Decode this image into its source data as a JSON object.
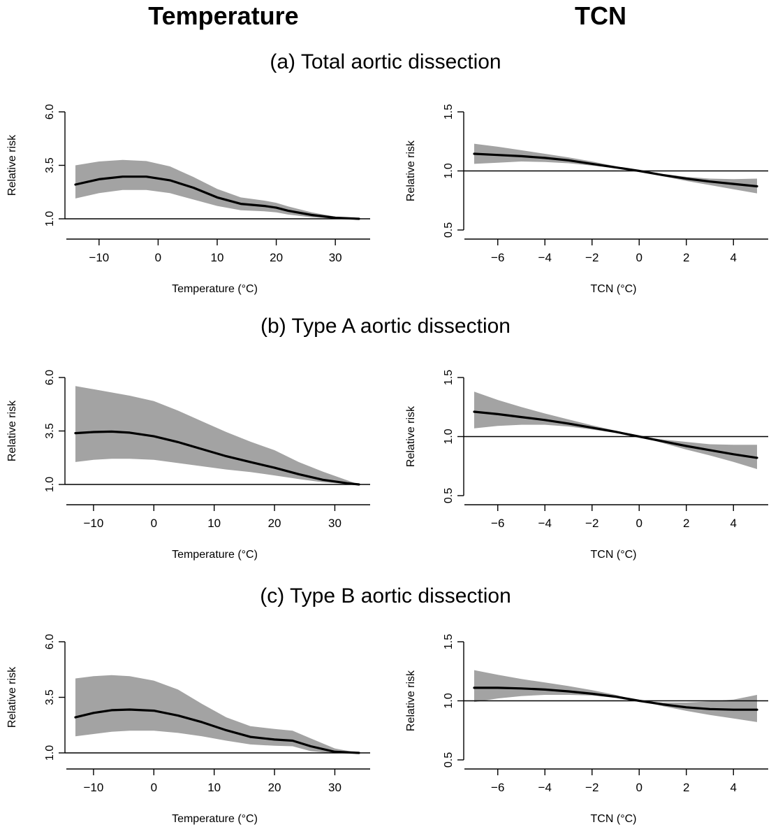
{
  "column_titles": {
    "left": "Temperature",
    "right": "TCN"
  },
  "row_titles": {
    "a": "(a) Total aortic dissection",
    "b": "(b) Type A aortic dissection",
    "c": "(c) Type B aortic dissection"
  },
  "colors": {
    "band": "#a3a3a3",
    "line": "#000000"
  },
  "chart_data": [
    {
      "id": "a-temperature",
      "type": "line",
      "title": "(a) Total aortic dissection",
      "xlabel": "Temperature (°C)",
      "ylabel": "Relative risk",
      "xlim": [
        -14,
        34
      ],
      "ylim": [
        1.0,
        6.0
      ],
      "xticks": [
        -10,
        0,
        10,
        20,
        30
      ],
      "xtick_labels": [
        "−10",
        "0",
        "10",
        "20",
        "30"
      ],
      "yticks": [
        1.0,
        3.5,
        6.0
      ],
      "ytick_labels": [
        "1.0",
        "3.5",
        "6.0"
      ],
      "reference_line": 1.0,
      "series": [
        {
          "x": [
            -14,
            -10,
            -6,
            -2,
            2,
            6,
            10,
            14,
            18,
            20,
            22,
            26,
            30,
            34
          ],
          "y": [
            2.6,
            2.85,
            2.97,
            2.97,
            2.8,
            2.45,
            2.0,
            1.7,
            1.6,
            1.52,
            1.38,
            1.18,
            1.05,
            1.0
          ],
          "lower": [
            1.95,
            2.2,
            2.35,
            2.35,
            2.2,
            1.9,
            1.6,
            1.4,
            1.35,
            1.3,
            1.2,
            1.07,
            1.01,
            1.0
          ],
          "upper": [
            3.5,
            3.68,
            3.75,
            3.7,
            3.45,
            2.95,
            2.4,
            2.0,
            1.85,
            1.75,
            1.58,
            1.3,
            1.1,
            1.0
          ]
        }
      ]
    },
    {
      "id": "a-tcn",
      "type": "line",
      "title": "(a) Total aortic dissection",
      "xlabel": "TCN (°C)",
      "ylabel": "Relative risk",
      "xlim": [
        -7,
        5
      ],
      "ylim": [
        0.5,
        1.5
      ],
      "xticks": [
        -6,
        -4,
        -2,
        0,
        2,
        4
      ],
      "xtick_labels": [
        "−6",
        "−4",
        "−2",
        "0",
        "2",
        "4"
      ],
      "yticks": [
        0.5,
        1.0,
        1.5
      ],
      "ytick_labels": [
        "0.5",
        "1.0",
        "1.5"
      ],
      "reference_line": 1.0,
      "series": [
        {
          "x": [
            -7,
            -6,
            -5,
            -4,
            -3,
            -2,
            -1,
            0,
            1,
            2,
            3,
            4,
            5
          ],
          "y": [
            1.145,
            1.135,
            1.125,
            1.11,
            1.09,
            1.06,
            1.03,
            1.0,
            0.965,
            0.935,
            0.91,
            0.89,
            0.87
          ],
          "lower": [
            1.06,
            1.07,
            1.08,
            1.075,
            1.065,
            1.045,
            1.022,
            1.0,
            0.955,
            0.915,
            0.88,
            0.845,
            0.81
          ],
          "upper": [
            1.23,
            1.205,
            1.175,
            1.145,
            1.115,
            1.08,
            1.04,
            1.0,
            0.975,
            0.95,
            0.935,
            0.93,
            0.935
          ]
        }
      ]
    },
    {
      "id": "b-temperature",
      "type": "line",
      "title": "(b) Type A aortic dissection",
      "xlabel": "Temperature (°C)",
      "ylabel": "Relative risk",
      "xlim": [
        -13,
        34
      ],
      "ylim": [
        1.0,
        6.0
      ],
      "xticks": [
        -10,
        0,
        10,
        20,
        30
      ],
      "xtick_labels": [
        "−10",
        "0",
        "10",
        "20",
        "30"
      ],
      "yticks": [
        1.0,
        3.5,
        6.0
      ],
      "ytick_labels": [
        "1.0",
        "3.5",
        "6.0"
      ],
      "reference_line": 1.0,
      "series": [
        {
          "x": [
            -13,
            -10,
            -7,
            -4,
            0,
            4,
            8,
            12,
            16,
            20,
            24,
            28,
            32,
            34
          ],
          "y": [
            3.4,
            3.45,
            3.47,
            3.42,
            3.25,
            2.98,
            2.65,
            2.32,
            2.05,
            1.78,
            1.48,
            1.22,
            1.06,
            1.0
          ],
          "lower": [
            2.05,
            2.15,
            2.2,
            2.2,
            2.15,
            2.0,
            1.85,
            1.7,
            1.58,
            1.42,
            1.25,
            1.1,
            1.02,
            1.0
          ],
          "upper": [
            5.6,
            5.45,
            5.3,
            5.15,
            4.9,
            4.45,
            3.95,
            3.45,
            3.0,
            2.6,
            2.05,
            1.6,
            1.2,
            1.0
          ]
        }
      ]
    },
    {
      "id": "b-tcn",
      "type": "line",
      "title": "(b) Type A aortic dissection",
      "xlabel": "TCN (°C)",
      "ylabel": "Relative risk",
      "xlim": [
        -7,
        5
      ],
      "ylim": [
        0.5,
        1.5
      ],
      "xticks": [
        -6,
        -4,
        -2,
        0,
        2,
        4
      ],
      "xtick_labels": [
        "−6",
        "−4",
        "−2",
        "0",
        "2",
        "4"
      ],
      "yticks": [
        0.5,
        1.0,
        1.5
      ],
      "ytick_labels": [
        "0.5",
        "1.0",
        "1.5"
      ],
      "reference_line": 1.0,
      "series": [
        {
          "x": [
            -7,
            -6,
            -5,
            -4,
            -3,
            -2,
            -1,
            0,
            1,
            2,
            3,
            4,
            5
          ],
          "y": [
            1.21,
            1.19,
            1.165,
            1.14,
            1.11,
            1.075,
            1.04,
            1.0,
            0.96,
            0.92,
            0.885,
            0.85,
            0.82
          ],
          "lower": [
            1.07,
            1.09,
            1.1,
            1.1,
            1.085,
            1.06,
            1.03,
            1.0,
            0.945,
            0.89,
            0.84,
            0.785,
            0.725
          ],
          "upper": [
            1.38,
            1.31,
            1.25,
            1.195,
            1.145,
            1.095,
            1.05,
            1.0,
            0.975,
            0.955,
            0.935,
            0.93,
            0.93
          ]
        }
      ]
    },
    {
      "id": "c-temperature",
      "type": "line",
      "title": "(c) Type B aortic dissection",
      "xlabel": "Temperature (°C)",
      "ylabel": "Relative risk",
      "xlim": [
        -13,
        34
      ],
      "ylim": [
        1.0,
        6.0
      ],
      "xticks": [
        -10,
        0,
        10,
        20,
        30
      ],
      "xtick_labels": [
        "−10",
        "0",
        "10",
        "20",
        "30"
      ],
      "yticks": [
        1.0,
        3.5,
        6.0
      ],
      "ytick_labels": [
        "1.0",
        "3.5",
        "6.0"
      ],
      "reference_line": 1.0,
      "series": [
        {
          "x": [
            -13,
            -10,
            -7,
            -4,
            0,
            4,
            8,
            12,
            16,
            20,
            23,
            26,
            30,
            34
          ],
          "y": [
            2.6,
            2.8,
            2.92,
            2.95,
            2.9,
            2.68,
            2.38,
            2.02,
            1.72,
            1.6,
            1.55,
            1.3,
            1.05,
            1.0
          ],
          "lower": [
            1.75,
            1.85,
            1.95,
            2.0,
            2.0,
            1.9,
            1.75,
            1.55,
            1.38,
            1.32,
            1.3,
            1.08,
            0.98,
            1.0
          ],
          "upper": [
            4.35,
            4.45,
            4.5,
            4.45,
            4.25,
            3.85,
            3.2,
            2.6,
            2.2,
            2.08,
            2.0,
            1.65,
            1.2,
            1.0
          ]
        }
      ]
    },
    {
      "id": "c-tcn",
      "type": "line",
      "title": "(c) Type B aortic dissection",
      "xlabel": "TCN (°C)",
      "ylabel": "Relative risk",
      "xlim": [
        -7,
        5
      ],
      "ylim": [
        0.5,
        1.5
      ],
      "xticks": [
        -6,
        -4,
        -2,
        0,
        2,
        4
      ],
      "xtick_labels": [
        "−6",
        "−4",
        "−2",
        "0",
        "2",
        "4"
      ],
      "yticks": [
        0.5,
        1.0,
        1.5
      ],
      "ytick_labels": [
        "0.5",
        "1.0",
        "1.5"
      ],
      "reference_line": 1.0,
      "series": [
        {
          "x": [
            -7,
            -6,
            -5,
            -4,
            -3,
            -2,
            -1,
            0,
            1,
            2,
            3,
            4,
            5
          ],
          "y": [
            1.11,
            1.11,
            1.105,
            1.095,
            1.08,
            1.06,
            1.035,
            1.0,
            0.97,
            0.945,
            0.93,
            0.925,
            0.925
          ],
          "lower": [
            0.99,
            1.02,
            1.04,
            1.05,
            1.05,
            1.045,
            1.025,
            1.0,
            0.955,
            0.915,
            0.88,
            0.85,
            0.82
          ],
          "upper": [
            1.26,
            1.22,
            1.185,
            1.155,
            1.125,
            1.09,
            1.05,
            1.0,
            0.985,
            0.985,
            0.995,
            1.01,
            1.05
          ]
        }
      ]
    }
  ]
}
